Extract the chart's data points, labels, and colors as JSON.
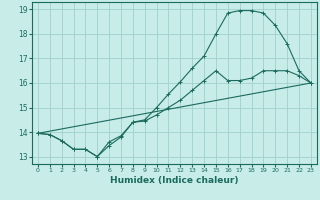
{
  "title": "",
  "xlabel": "Humidex (Indice chaleur)",
  "background_color": "#c8ece8",
  "grid_color": "#a0d0cc",
  "line_color": "#1a6b5e",
  "xlim": [
    -0.5,
    23.5
  ],
  "ylim": [
    12.7,
    19.3
  ],
  "xticks": [
    0,
    1,
    2,
    3,
    4,
    5,
    6,
    7,
    8,
    9,
    10,
    11,
    12,
    13,
    14,
    15,
    16,
    17,
    18,
    19,
    20,
    21,
    22,
    23
  ],
  "yticks": [
    13,
    14,
    15,
    16,
    17,
    18,
    19
  ],
  "line1_x": [
    0,
    1,
    2,
    3,
    4,
    5,
    6,
    7,
    8,
    9,
    10,
    11,
    12,
    13,
    14,
    15,
    16,
    17,
    18,
    19,
    20,
    21,
    22,
    23
  ],
  "line1_y": [
    13.95,
    13.9,
    13.65,
    13.3,
    13.3,
    13.0,
    13.45,
    13.8,
    14.4,
    14.45,
    14.7,
    15.0,
    15.3,
    15.7,
    16.1,
    16.5,
    16.1,
    16.1,
    16.2,
    16.5,
    16.5,
    16.5,
    16.3,
    16.0
  ],
  "line2_x": [
    0,
    1,
    2,
    3,
    4,
    5,
    6,
    7,
    8,
    9,
    10,
    11,
    12,
    13,
    14,
    15,
    16,
    17,
    18,
    19,
    20,
    21,
    22,
    23
  ],
  "line2_y": [
    13.95,
    13.9,
    13.65,
    13.3,
    13.3,
    13.0,
    13.6,
    13.85,
    14.4,
    14.5,
    15.0,
    15.55,
    16.05,
    16.6,
    17.1,
    18.0,
    18.85,
    18.95,
    18.95,
    18.85,
    18.35,
    17.6,
    16.5,
    16.0
  ],
  "line3_x": [
    0,
    23
  ],
  "line3_y": [
    13.95,
    16.0
  ]
}
